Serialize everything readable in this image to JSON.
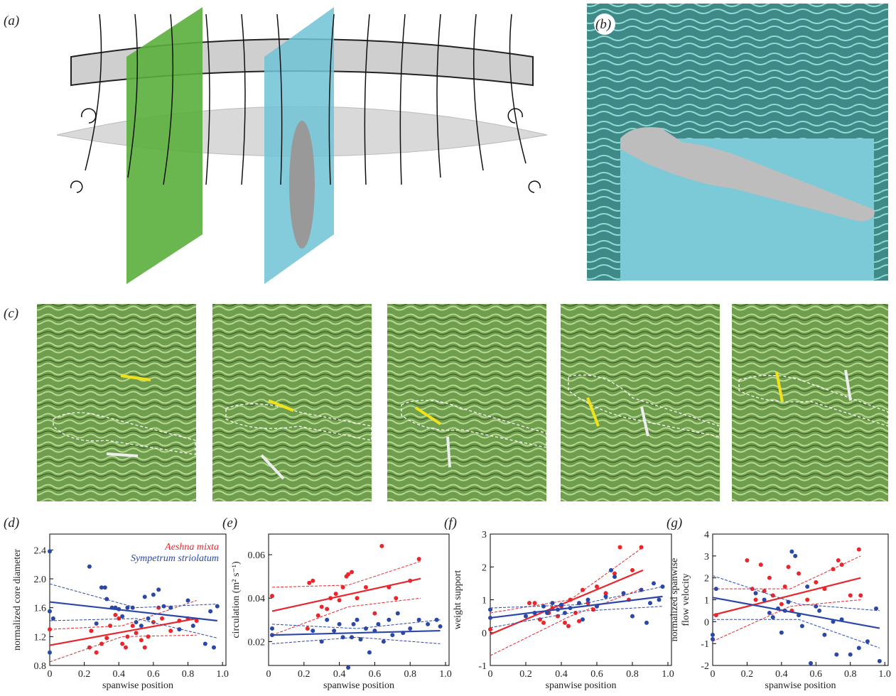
{
  "panel_labels": {
    "a": "(a)",
    "b": "(b)",
    "c": "(c)"
  },
  "chart_data": [
    {
      "type": "scatter",
      "label": "(d)",
      "xlabel": "spanwise position",
      "ylabel": "normalized core diameter",
      "xlim": [
        0,
        1.02
      ],
      "ylim": [
        0.8,
        2.62
      ],
      "xticks": [
        0,
        0.2,
        0.4,
        0.6,
        0.8,
        {
          "value": 1,
          "label": "1.0"
        }
      ],
      "yticks": [
        0.8,
        1.2,
        1.6,
        {
          "value": 2,
          "label": "2.0"
        },
        2.4
      ],
      "legend": "top-right",
      "series": [
        {
          "name": "Aeshna mixta",
          "color": "#e8262c",
          "x": [
            0,
            0.23,
            0.24,
            0.27,
            0.3,
            0.33,
            0.35,
            0.38,
            0.4,
            0.42,
            0.44,
            0.45,
            0.48,
            0.5,
            0.53,
            0.55,
            0.57,
            0.6,
            0.63,
            0.65,
            0.7,
            0.75,
            0.8,
            0.85
          ],
          "values": [
            1.3,
            1.05,
            1.28,
            0.98,
            1.1,
            1.18,
            1.35,
            1.5,
            1.45,
            1.1,
            1.05,
            1.2,
            1.35,
            1.25,
            1.15,
            1.05,
            1.2,
            1.4,
            1.6,
            1.45,
            1.28,
            1.42,
            1.45,
            1.42
          ],
          "fit": {
            "x": [
              0,
              0.85
            ],
            "values": [
              1.08,
              1.45
            ]
          },
          "band_upper": {
            "x": [
              0,
              0.42,
              0.85
            ],
            "values": [
              1.3,
              1.35,
              1.7
            ]
          },
          "band_lower": {
            "x": [
              0,
              0.42,
              0.85
            ],
            "values": [
              0.85,
              1.2,
              1.22
            ]
          }
        },
        {
          "name": "Sympetrum striolatum",
          "color": "#2b48a8",
          "x": [
            0,
            0,
            0,
            0.02,
            0.23,
            0.27,
            0.3,
            0.32,
            0.33,
            0.36,
            0.38,
            0.4,
            0.42,
            0.45,
            0.48,
            0.5,
            0.53,
            0.55,
            0.57,
            0.6,
            0.63,
            0.66,
            0.7,
            0.75,
            0.8,
            0.83,
            0.9,
            0.93,
            0.95,
            0.97
          ],
          "values": [
            2.38,
            1.55,
            0.98,
            1.45,
            2.17,
            1.38,
            1.88,
            1.88,
            1.72,
            1.6,
            1.6,
            1.58,
            1.48,
            1.6,
            1.6,
            1.4,
            1.35,
            1.75,
            1.45,
            1.78,
            1.85,
            1.62,
            1.6,
            1.3,
            1.7,
            1.35,
            1.1,
            1.55,
            1.05,
            1.62
          ],
          "fit": {
            "x": [
              0,
              0.97
            ],
            "values": [
              1.68,
              1.42
            ]
          },
          "band_upper": {
            "x": [
              0,
              0.5,
              0.97
            ],
            "values": [
              1.93,
              1.6,
              1.65
            ]
          },
          "band_lower": {
            "x": [
              0,
              0.5,
              0.97
            ],
            "values": [
              1.42,
              1.45,
              1.18
            ]
          }
        }
      ]
    },
    {
      "type": "scatter",
      "label": "(e)",
      "xlabel": "spanwise position",
      "ylabel": "circulation (m² s⁻¹)",
      "xlim": [
        0,
        1.02
      ],
      "ylim": [
        0.009,
        0.0695
      ],
      "xticks": [
        0,
        0.2,
        0.4,
        0.6,
        0.8,
        {
          "value": 1,
          "label": "1.0"
        }
      ],
      "yticks": [
        0.02,
        0.04,
        0.06
      ],
      "series": [
        {
          "color": "#e8262c",
          "x": [
            0.02,
            0.22,
            0.23,
            0.25,
            0.28,
            0.3,
            0.33,
            0.35,
            0.38,
            0.4,
            0.42,
            0.44,
            0.45,
            0.47,
            0.5,
            0.55,
            0.6,
            0.64,
            0.68,
            0.72,
            0.8,
            0.85
          ],
          "values": [
            0.041,
            0.026,
            0.047,
            0.048,
            0.032,
            0.036,
            0.035,
            0.04,
            0.042,
            0.039,
            0.045,
            0.05,
            0.051,
            0.052,
            0.04,
            0.045,
            0.033,
            0.064,
            0.045,
            0.04,
            0.048,
            0.058
          ],
          "fit": {
            "x": [
              0.02,
              0.86
            ],
            "values": [
              0.034,
              0.049
            ]
          },
          "band_upper": {
            "x": [
              0.02,
              0.45,
              0.86
            ],
            "values": [
              0.045,
              0.046,
              0.057
            ]
          },
          "band_lower": {
            "x": [
              0.02,
              0.45,
              0.86
            ],
            "values": [
              0.023,
              0.036,
              0.04
            ]
          }
        },
        {
          "color": "#2b48a8",
          "x": [
            0.02,
            0.02,
            0.25,
            0.3,
            0.33,
            0.37,
            0.4,
            0.42,
            0.45,
            0.47,
            0.48,
            0.5,
            0.52,
            0.55,
            0.57,
            0.6,
            0.62,
            0.65,
            0.68,
            0.7,
            0.73,
            0.76,
            0.8,
            0.85,
            0.9,
            0.95,
            0.97
          ],
          "values": [
            0.023,
            0.026,
            0.025,
            0.02,
            0.03,
            0.025,
            0.028,
            0.022,
            0.008,
            0.022,
            0.028,
            0.03,
            0.021,
            0.026,
            0.015,
            0.025,
            0.028,
            0.02,
            0.03,
            0.023,
            0.033,
            0.024,
            0.026,
            0.03,
            0.028,
            0.03,
            0.027
          ],
          "fit": {
            "x": [
              0.02,
              0.97
            ],
            "values": [
              0.023,
              0.025
            ]
          },
          "band_upper": {
            "x": [
              0.02,
              0.5,
              0.97
            ],
            "values": [
              0.028,
              0.026,
              0.03
            ]
          },
          "band_lower": {
            "x": [
              0.02,
              0.5,
              0.97
            ],
            "values": [
              0.019,
              0.022,
              0.019
            ]
          }
        }
      ]
    },
    {
      "type": "scatter",
      "label": "(f)",
      "xlabel": "spanwise position",
      "ylabel": "weight support",
      "xlim": [
        0,
        1.02
      ],
      "ylim": [
        -1,
        3
      ],
      "xticks": [
        0,
        0.2,
        0.4,
        0.6,
        0.8,
        {
          "value": 1,
          "label": "1.0"
        }
      ],
      "yticks": [
        -1,
        0,
        1,
        2,
        3
      ],
      "series": [
        {
          "color": "#e8262c",
          "x": [
            0,
            0.22,
            0.25,
            0.28,
            0.3,
            0.33,
            0.35,
            0.38,
            0.4,
            0.42,
            0.44,
            0.45,
            0.48,
            0.5,
            0.52,
            0.55,
            0.58,
            0.6,
            0.65,
            0.7,
            0.73,
            0.78,
            0.85,
            0.8
          ],
          "values": [
            0.1,
            0.9,
            0.9,
            0.4,
            0.3,
            0.6,
            0.75,
            0.5,
            0.8,
            0.3,
            0.2,
            1,
            0.6,
            0.35,
            1.3,
            0.9,
            0.7,
            1.4,
            1.2,
            1.8,
            2.6,
            1,
            2.6,
            1.9
          ],
          "fit": {
            "x": [
              0,
              0.86
            ],
            "values": [
              -0.05,
              1.9
            ]
          },
          "band_upper": {
            "x": [
              0,
              0.45,
              0.86
            ],
            "values": [
              0.6,
              1,
              2.6
            ]
          },
          "band_lower": {
            "x": [
              0,
              0.45,
              0.86
            ],
            "values": [
              -0.7,
              0.5,
              1.35
            ]
          }
        },
        {
          "color": "#2b48a8",
          "x": [
            0,
            0,
            0.2,
            0.25,
            0.3,
            0.32,
            0.35,
            0.38,
            0.4,
            0.42,
            0.45,
            0.5,
            0.52,
            0.55,
            0.6,
            0.65,
            0.68,
            0.7,
            0.75,
            0.8,
            0.85,
            0.88,
            0.9,
            0.95,
            0.97,
            0.92
          ],
          "values": [
            0.7,
            0.45,
            0.5,
            0.6,
            0.8,
            0.6,
            0.9,
            0.7,
            0.85,
            0.6,
            0.75,
            0.9,
            0.4,
            1,
            0.8,
            1.1,
            1.9,
            1.7,
            1.2,
            0.5,
            1.3,
            0.3,
            0.9,
            1,
            1.4,
            1.5
          ],
          "fit": {
            "x": [
              0,
              0.97
            ],
            "values": [
              0.45,
              1.1
            ]
          },
          "band_upper": {
            "x": [
              0,
              0.5,
              0.97
            ],
            "values": [
              0.75,
              0.85,
              1.4
            ]
          },
          "band_lower": {
            "x": [
              0,
              0.5,
              0.97
            ],
            "values": [
              0.15,
              0.65,
              0.8
            ]
          }
        }
      ]
    },
    {
      "type": "scatter",
      "label": "(g)",
      "xlabel": "spanwise position",
      "ylabel": [
        "normalized spanwise",
        "flow velocity"
      ],
      "xlim": [
        0,
        1.02
      ],
      "ylim": [
        -2,
        4
      ],
      "xticks": [
        0,
        0.2,
        0.4,
        0.6,
        0.8,
        {
          "value": 1,
          "label": "1.0"
        }
      ],
      "yticks": [
        -2,
        -1,
        0,
        1,
        2,
        3,
        4
      ],
      "series": [
        {
          "color": "#e8262c",
          "x": [
            0.02,
            0.2,
            0.23,
            0.25,
            0.28,
            0.3,
            0.33,
            0.35,
            0.4,
            0.42,
            0.44,
            0.46,
            0.5,
            0.55,
            0.6,
            0.65,
            0.7,
            0.73,
            0.75,
            0.8,
            0.85,
            0.86
          ],
          "values": [
            0.3,
            2.8,
            1.5,
            1,
            2.6,
            1.4,
            2,
            1.2,
            0.8,
            1.6,
            2.5,
            0.5,
            2.2,
            1,
            1.8,
            1.5,
            2.4,
            2.8,
            2.6,
            1.2,
            3.3,
            1.2
          ],
          "fit": {
            "x": [
              0,
              0.86
            ],
            "values": [
              0.3,
              2
            ]
          },
          "band_upper": {
            "x": [
              0,
              0.45,
              0.86
            ],
            "values": [
              1.5,
              1.5,
              3
            ]
          },
          "band_lower": {
            "x": [
              0,
              0.45,
              0.86
            ],
            "values": [
              -0.9,
              0.7,
              1
            ]
          }
        },
        {
          "color": "#2b48a8",
          "x": [
            0,
            0,
            0.02,
            0.25,
            0.3,
            0.33,
            0.35,
            0.38,
            0.4,
            0.42,
            0.44,
            0.46,
            0.48,
            0.5,
            0.52,
            0.55,
            0.57,
            0.6,
            0.62,
            0.65,
            0.7,
            0.72,
            0.75,
            0.8,
            0.85,
            0.9,
            0.95,
            0.97
          ],
          "values": [
            -0.6,
            -0.8,
            1.5,
            1.3,
            1,
            0.4,
            0.2,
            0.6,
            -0.5,
            0.5,
            0.9,
            3.2,
            3,
            0.3,
            -0.2,
            1.6,
            -1.9,
            0.7,
            0.5,
            -0.6,
            0,
            -1.5,
            0.1,
            -1.5,
            -1.2,
            -0.9,
            0.6,
            -1.8
          ],
          "fit": {
            "x": [
              0,
              0.97
            ],
            "values": [
              1.1,
              -0.3
            ]
          },
          "band_upper": {
            "x": [
              0,
              0.5,
              0.97
            ],
            "values": [
              2.1,
              0.8,
              0.5
            ]
          },
          "band_lower": {
            "x": [
              0,
              0.5,
              0.97
            ],
            "values": [
              0.1,
              0.1,
              -1.2
            ]
          }
        }
      ]
    }
  ]
}
